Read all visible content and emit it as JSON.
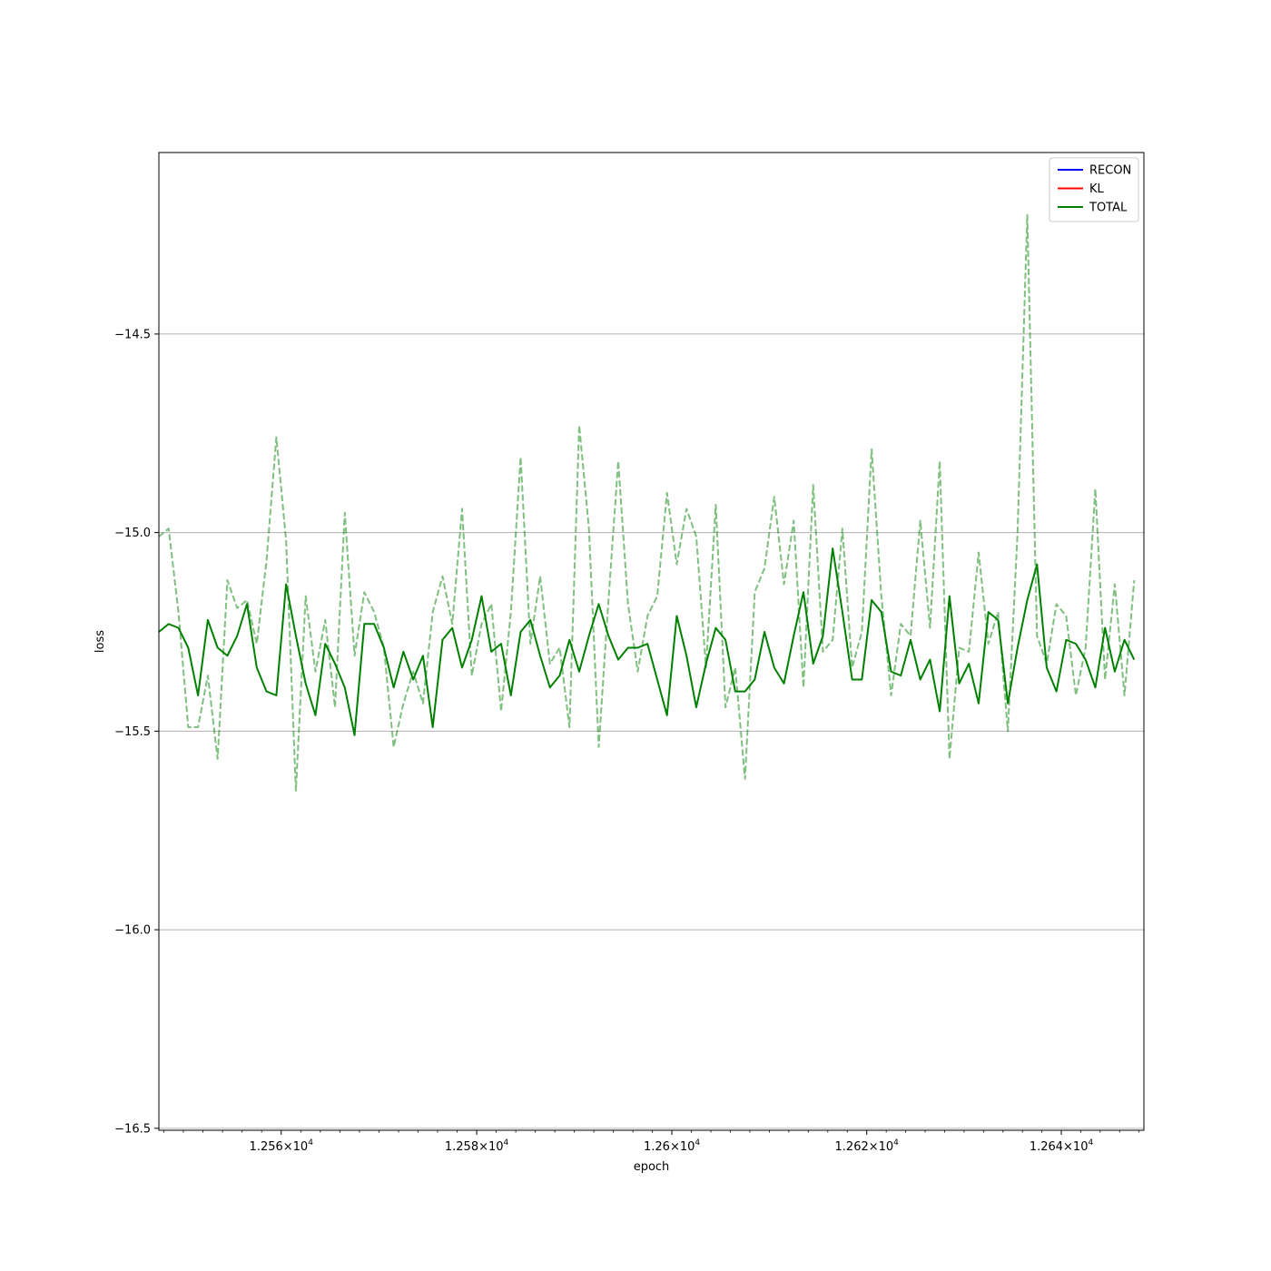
{
  "chart_data": {
    "type": "line",
    "xlabel": "epoch",
    "ylabel": "loss",
    "x_scale": "log",
    "xlim": [
      12547.5,
      12648.5
    ],
    "ylim": [
      -16.505,
      -14.043
    ],
    "yticks": [
      -14.5,
      -15.0,
      -15.5,
      -16.0,
      -16.5
    ],
    "ytick_labels": [
      "−14.5",
      "−15.0",
      "−15.5",
      "−16.0",
      "−16.5"
    ],
    "xticks": [
      12560,
      12580,
      12600,
      12620,
      12640
    ],
    "xtick_labels": [
      "1.256×10^4",
      "1.258×10^4",
      "1.26×10^4",
      "1.262×10^4",
      "1.264×10^4"
    ],
    "grid": "y-major",
    "legend": {
      "placement": "top-right",
      "entries": [
        {
          "label": "RECON",
          "color": "#0000ff"
        },
        {
          "label": "KL",
          "color": "#ff0000"
        },
        {
          "label": "TOTAL",
          "color": "#008000"
        }
      ]
    },
    "x": [
      12547.5,
      12548.5,
      12549.5,
      12550.5,
      12551.5,
      12552.5,
      12553.5,
      12554.5,
      12555.5,
      12556.5,
      12557.5,
      12558.5,
      12559.5,
      12560.5,
      12561.5,
      12562.5,
      12563.5,
      12564.5,
      12565.5,
      12566.5,
      12567.5,
      12568.5,
      12569.5,
      12570.5,
      12571.5,
      12572.5,
      12573.5,
      12574.5,
      12575.5,
      12576.5,
      12577.5,
      12578.5,
      12579.5,
      12580.5,
      12581.5,
      12582.5,
      12583.5,
      12584.5,
      12585.5,
      12586.5,
      12587.5,
      12588.5,
      12589.5,
      12590.5,
      12591.5,
      12592.5,
      12593.5,
      12594.5,
      12595.5,
      12596.5,
      12597.5,
      12598.5,
      12599.5,
      12600.5,
      12601.5,
      12602.5,
      12603.5,
      12604.5,
      12605.5,
      12606.5,
      12607.5,
      12608.5,
      12609.5,
      12610.5,
      12611.5,
      12612.5,
      12613.5,
      12614.5,
      12615.5,
      12616.5,
      12617.5,
      12618.5,
      12619.5,
      12620.5,
      12621.5,
      12622.5,
      12623.5,
      12624.5,
      12625.5,
      12626.5,
      12627.5,
      12628.5,
      12629.5,
      12630.5,
      12631.5,
      12632.5,
      12633.5,
      12634.5,
      12635.5,
      12636.5,
      12637.5,
      12638.5,
      12639.5,
      12640.5,
      12641.5,
      12642.5,
      12643.5,
      12644.5,
      12645.5,
      12646.5,
      12647.5
    ],
    "series": [
      {
        "name": "TOTAL",
        "color": "#008000",
        "style": "solid",
        "values": [
          -15.25,
          -15.23,
          -15.24,
          -15.29,
          -15.41,
          -15.22,
          -15.29,
          -15.31,
          -15.26,
          -15.18,
          -15.34,
          -15.4,
          -15.41,
          -15.13,
          -15.26,
          -15.38,
          -15.46,
          -15.28,
          -15.33,
          -15.39,
          -15.51,
          -15.23,
          -15.23,
          -15.29,
          -15.39,
          -15.3,
          -15.37,
          -15.31,
          -15.49,
          -15.27,
          -15.24,
          -15.34,
          -15.27,
          -15.16,
          -15.3,
          -15.28,
          -15.41,
          -15.25,
          -15.22,
          -15.31,
          -15.39,
          -15.36,
          -15.27,
          -15.35,
          -15.26,
          -15.18,
          -15.26,
          -15.32,
          -15.29,
          -15.29,
          -15.28,
          -15.37,
          -15.46,
          -15.21,
          -15.31,
          -15.44,
          -15.33,
          -15.24,
          -15.27,
          -15.4,
          -15.4,
          -15.37,
          -15.25,
          -15.34,
          -15.38,
          -15.26,
          -15.15,
          -15.33,
          -15.26,
          -15.04,
          -15.2,
          -15.37,
          -15.37,
          -15.17,
          -15.2,
          -15.35,
          -15.36,
          -15.27,
          -15.37,
          -15.32,
          -15.45,
          -15.16,
          -15.38,
          -15.33,
          -15.43,
          -15.2,
          -15.22,
          -15.43,
          -15.29,
          -15.17,
          -15.08,
          -15.34,
          -15.4,
          -15.27,
          -15.28,
          -15.32,
          -15.39,
          -15.24,
          -15.35,
          -15.27,
          -15.32
        ]
      },
      {
        "name": "",
        "color": "#008000",
        "style": "dashed",
        "opacity": 0.5,
        "values": [
          -15.01,
          -14.99,
          -15.2,
          -15.49,
          -15.49,
          -15.36,
          -15.57,
          -15.12,
          -15.19,
          -15.17,
          -15.28,
          -15.07,
          -14.76,
          -15.02,
          -15.65,
          -15.16,
          -15.35,
          -15.22,
          -15.44,
          -14.95,
          -15.31,
          -15.15,
          -15.2,
          -15.29,
          -15.54,
          -15.43,
          -15.35,
          -15.43,
          -15.2,
          -15.11,
          -15.23,
          -14.94,
          -15.36,
          -15.23,
          -15.18,
          -15.45,
          -15.2,
          -14.81,
          -15.28,
          -15.11,
          -15.33,
          -15.29,
          -15.49,
          -14.73,
          -14.99,
          -15.54,
          -15.17,
          -14.82,
          -15.18,
          -15.35,
          -15.21,
          -15.16,
          -14.9,
          -15.08,
          -14.94,
          -15.01,
          -15.34,
          -14.93,
          -15.44,
          -15.34,
          -15.62,
          -15.15,
          -15.09,
          -14.91,
          -15.13,
          -14.97,
          -15.39,
          -14.88,
          -15.3,
          -15.27,
          -14.99,
          -15.34,
          -15.25,
          -14.79,
          -15.16,
          -15.41,
          -15.23,
          -15.26,
          -14.97,
          -15.24,
          -14.82,
          -15.57,
          -15.29,
          -15.3,
          -15.05,
          -15.28,
          -15.2,
          -15.5,
          -15.0,
          -14.2,
          -15.26,
          -15.33,
          -15.18,
          -15.21,
          -15.41,
          -15.29,
          -14.89,
          -15.37,
          -15.13,
          -15.41,
          -15.12
        ]
      }
    ]
  }
}
